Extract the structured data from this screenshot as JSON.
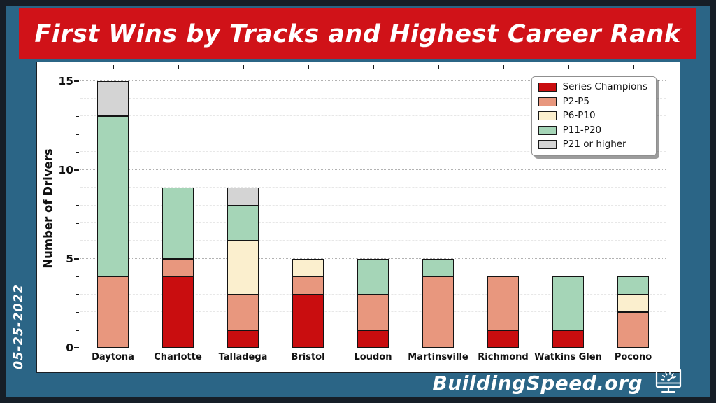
{
  "banner": {
    "title": "First Wins by Tracks and Highest Career Rank"
  },
  "date_label": "05-25-2022",
  "footer": {
    "brand": "BuildingSpeed.org",
    "icon": "speedometer-monitor"
  },
  "colors": {
    "background": "#2B6586",
    "frame": "#161E27",
    "banner_red": "#D01218",
    "panel": "#FFFFFF",
    "axis": "#1A1A1A",
    "grid_major": "#B2B2B2",
    "grid_minor": "#E7E7E7"
  },
  "chart_data": {
    "type": "bar",
    "stacked": true,
    "title": "First Wins by Tracks and Highest Career Rank",
    "xlabel": "",
    "ylabel": "Number of Drivers",
    "categories": [
      "Daytona",
      "Charlotte",
      "Talladega",
      "Bristol",
      "Loudon",
      "Martinsville",
      "Richmond",
      "Watkins Glen",
      "Pocono"
    ],
    "series": [
      {
        "name": "Series Champions",
        "color": "#C90D0F",
        "values": [
          0,
          4,
          1,
          3,
          1,
          0,
          1,
          1,
          0
        ]
      },
      {
        "name": "P2-P5",
        "color": "#E8977E",
        "values": [
          4,
          1,
          2,
          1,
          2,
          4,
          3,
          0,
          2
        ]
      },
      {
        "name": "P6-P10",
        "color": "#FBEFCE",
        "values": [
          0,
          0,
          3,
          1,
          0,
          0,
          0,
          0,
          1
        ]
      },
      {
        "name": "P11-P20",
        "color": "#A5D5B7",
        "values": [
          9,
          4,
          2,
          0,
          2,
          1,
          0,
          3,
          1
        ]
      },
      {
        "name": "P21 or higher",
        "color": "#D4D4D4",
        "values": [
          2,
          0,
          1,
          0,
          0,
          0,
          0,
          0,
          0
        ]
      }
    ],
    "totals": [
      15,
      9,
      9,
      5,
      5,
      5,
      4,
      4,
      4
    ],
    "ylim": [
      0,
      15.65
    ],
    "yticks": [
      0,
      5,
      10,
      15
    ],
    "grid": "horizontal; dotted major lines at 5/10/15, faint dashed minor lines at every integer",
    "legend_position": "upper right"
  }
}
